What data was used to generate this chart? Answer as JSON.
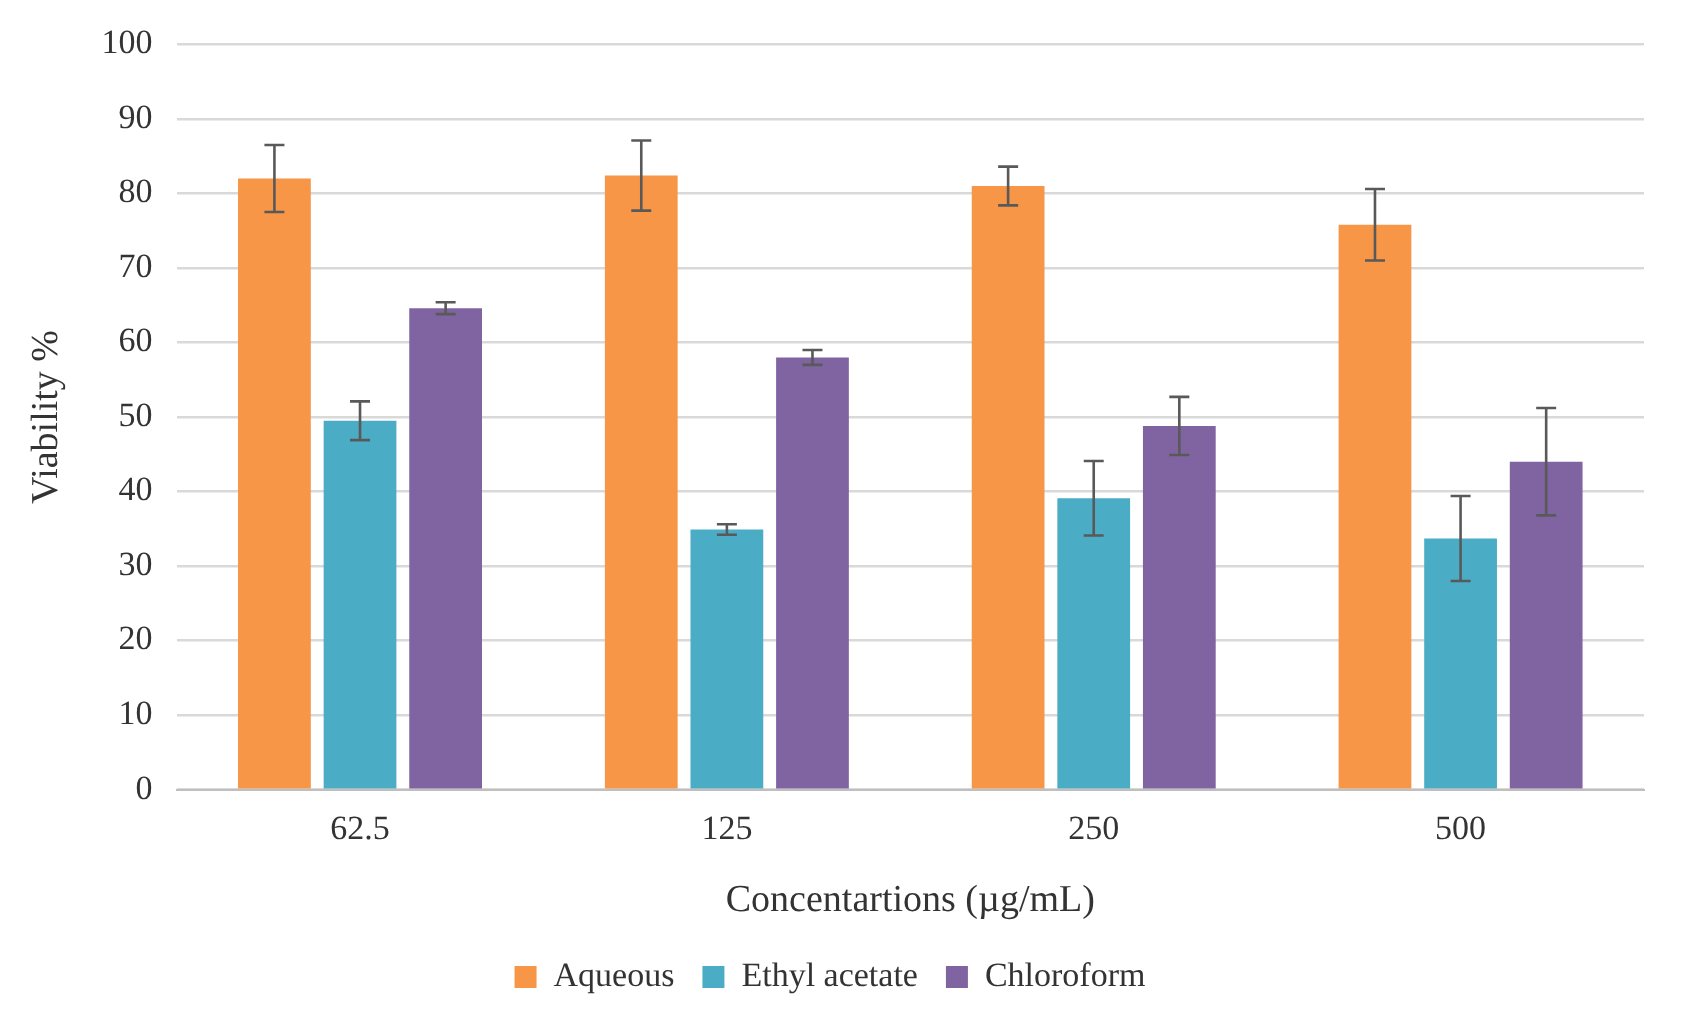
{
  "chart_data": {
    "type": "bar",
    "xlabel": "Concentartions (µg/mL)",
    "ylabel": "Viability %",
    "categories": [
      "62.5",
      "125",
      "250",
      "500"
    ],
    "series": [
      {
        "name": "Aqueous",
        "color": "#f79646",
        "values": [
          82.0,
          82.4,
          81.0,
          75.8
        ],
        "errors": [
          4.5,
          4.7,
          2.6,
          4.8
        ]
      },
      {
        "name": "Ethyl acetate",
        "color": "#4bacc6",
        "values": [
          49.5,
          34.9,
          39.1,
          33.7
        ],
        "errors": [
          2.6,
          0.7,
          5.0,
          5.7
        ]
      },
      {
        "name": "Chloroform",
        "color": "#8064a2",
        "values": [
          64.6,
          58.0,
          48.8,
          44.0
        ],
        "errors": [
          0.8,
          1.0,
          3.9,
          7.2
        ]
      }
    ],
    "ylim": [
      0,
      100
    ],
    "yticks": [
      0,
      10,
      20,
      30,
      40,
      50,
      60,
      70,
      80,
      90,
      100
    ],
    "grid": "y",
    "legend": "bottom"
  }
}
